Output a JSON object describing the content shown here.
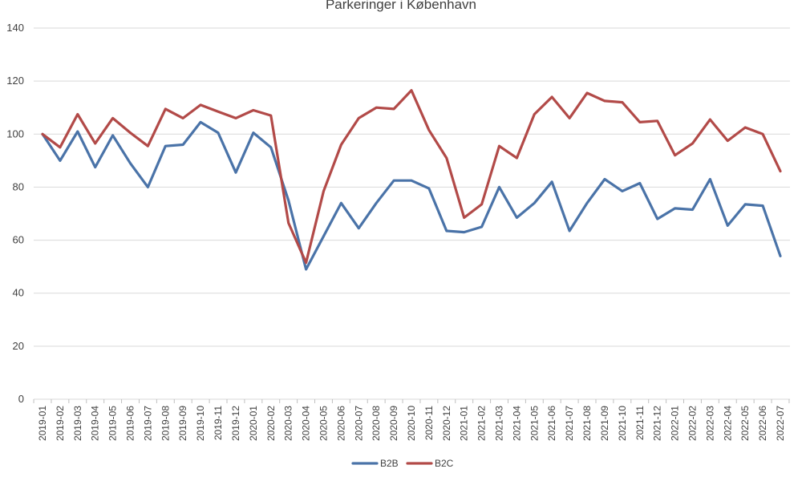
{
  "chart_data": {
    "type": "line",
    "title": "Parkeringer i København",
    "xlabel": "",
    "ylabel": "",
    "ylim": [
      0,
      140
    ],
    "yticks": [
      0,
      20,
      40,
      60,
      80,
      100,
      120,
      140
    ],
    "grid": true,
    "legend_position": "bottom",
    "categories": [
      "2019-01",
      "2019-02",
      "2019-03",
      "2019-04",
      "2019-05",
      "2019-06",
      "2019-07",
      "2019-08",
      "2019-09",
      "2019-10",
      "2019-11",
      "2019-12",
      "2020-01",
      "2020-02",
      "2020-03",
      "2020-04",
      "2020-05",
      "2020-06",
      "2020-07",
      "2020-08",
      "2020-09",
      "2020-10",
      "2020-11",
      "2020-12",
      "2021-01",
      "2021-02",
      "2021-03",
      "2021-04",
      "2021-05",
      "2021-06",
      "2021-07",
      "2021-08",
      "2021-09",
      "2021-10",
      "2021-11",
      "2021-12",
      "2022-01",
      "2022-02",
      "2022-03",
      "2022-04",
      "2022-05",
      "2022-06",
      "2022-07"
    ],
    "series": [
      {
        "name": "B2B",
        "color": "#4a73a8",
        "values": [
          100,
          90,
          101,
          87.5,
          99.5,
          89,
          80,
          95.5,
          96,
          104.5,
          100.5,
          85.5,
          100.5,
          95,
          75,
          49,
          61.5,
          74,
          64.5,
          74,
          82.5,
          82.5,
          79.5,
          63.5,
          63,
          65,
          80,
          68.5,
          74,
          82,
          63.5,
          74,
          83,
          78.5,
          81.5,
          68,
          72,
          71.5,
          83,
          65.5,
          73.5,
          73,
          54
        ]
      },
      {
        "name": "B2C",
        "color": "#b24a48",
        "values": [
          100,
          95,
          107.5,
          96.5,
          106,
          100.5,
          95.5,
          109.5,
          106,
          111,
          108.5,
          106,
          109,
          107,
          66.5,
          51.5,
          78.5,
          96,
          106,
          110,
          109.5,
          116.5,
          101.5,
          91,
          68.5,
          73.5,
          95.5,
          91,
          107.5,
          114,
          106,
          115.5,
          112.5,
          112,
          104.5,
          105,
          92,
          96.5,
          105.5,
          97.5,
          102.5,
          100,
          86
        ]
      }
    ]
  }
}
